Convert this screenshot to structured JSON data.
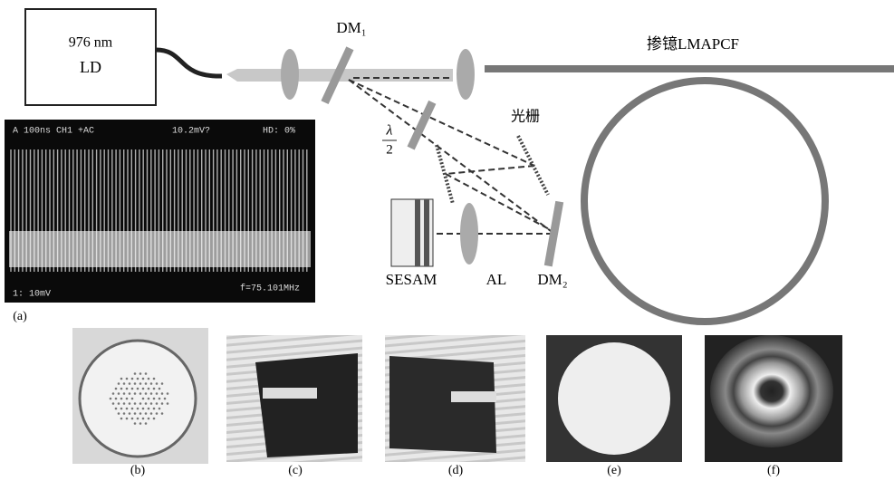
{
  "laser_box": {
    "line1": "976 nm",
    "line2": "LD"
  },
  "labels": {
    "dm1": "DM₁",
    "fiber": "掺镱LMAPCF",
    "grating": "光栅",
    "half_wave": {
      "numerator": "λ",
      "denominator": "2"
    },
    "sesam": "SESAM",
    "al": "AL",
    "dm2": "DM₂"
  },
  "oscilloscope": {
    "top_left": "A  100ns  CH1  +AC",
    "top_mid": "10.2mV?",
    "top_right": "HD:  0%",
    "bottom_left": "1:  10mV",
    "bottom_right": "f=75.101MHz"
  },
  "panel_labels": [
    "(a)",
    "(b)",
    "(c)",
    "(d)",
    "(e)",
    "(f)"
  ]
}
